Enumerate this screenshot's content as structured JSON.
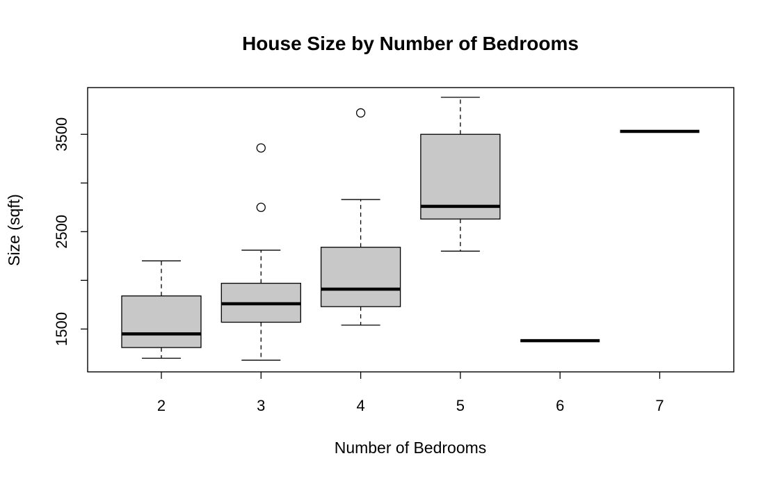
{
  "chart_data": {
    "type": "box",
    "title": "House Size by Number of Bedrooms",
    "xlabel": "Number of Bedrooms",
    "ylabel": "Size (sqft)",
    "categories": [
      "2",
      "3",
      "4",
      "5",
      "6",
      "7"
    ],
    "ylim": [
      1060,
      3980
    ],
    "yticks": [
      1500,
      2000,
      2500,
      3000,
      3500
    ],
    "ytick_labels": [
      "1500",
      "",
      "2500",
      "",
      "3500"
    ],
    "grid": false,
    "legend": "none",
    "box_fill": "#c8c8c8",
    "stroke": "#000000",
    "boxes": [
      {
        "category": "2",
        "whisker_low": 1200,
        "q1": 1310,
        "median": 1450,
        "q3": 1840,
        "whisker_high": 2200,
        "outliers": []
      },
      {
        "category": "3",
        "whisker_low": 1180,
        "q1": 1570,
        "median": 1760,
        "q3": 1970,
        "whisker_high": 2310,
        "outliers": [
          2750,
          3360
        ]
      },
      {
        "category": "4",
        "whisker_low": 1540,
        "q1": 1730,
        "median": 1910,
        "q3": 2340,
        "whisker_high": 2830,
        "outliers": [
          3720
        ]
      },
      {
        "category": "5",
        "whisker_low": 2300,
        "q1": 2630,
        "median": 2760,
        "q3": 3500,
        "whisker_high": 3880,
        "outliers": []
      },
      {
        "category": "6",
        "whisker_low": 1380,
        "q1": 1380,
        "median": 1380,
        "q3": 1380,
        "whisker_high": 1380,
        "outliers": []
      },
      {
        "category": "7",
        "whisker_low": 3530,
        "q1": 3530,
        "median": 3530,
        "q3": 3530,
        "whisker_high": 3530,
        "outliers": []
      }
    ]
  }
}
